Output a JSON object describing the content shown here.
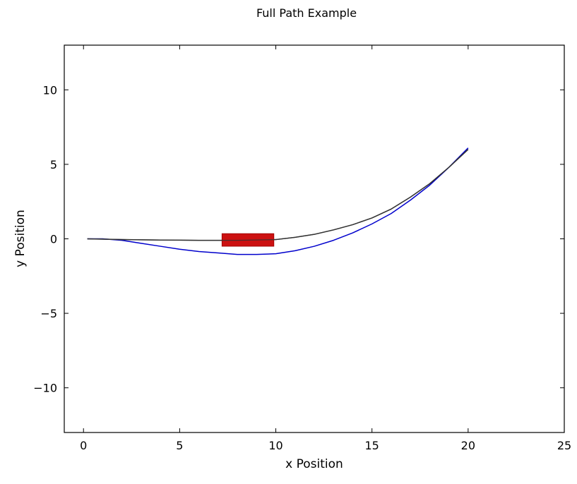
{
  "chart_data": {
    "type": "line",
    "title": "Full Path Example",
    "xlabel": "x Position",
    "ylabel": "y Position",
    "xlim": [
      -1,
      25
    ],
    "ylim": [
      -13,
      13
    ],
    "xticks": [
      0,
      5,
      10,
      15,
      20,
      25
    ],
    "xtick_labels": [
      "0",
      "5",
      "10",
      "15",
      "20",
      "25"
    ],
    "yticks": [
      -10,
      -5,
      0,
      5,
      10
    ],
    "ytick_labels": [
      "−10",
      "−5",
      "0",
      "5",
      "10"
    ],
    "grid": false,
    "series": [
      {
        "color": "#0000cc",
        "x": [
          0.2,
          1,
          2,
          3,
          4,
          5,
          6,
          7,
          8,
          9,
          10,
          11,
          12,
          13,
          14,
          15,
          16,
          17,
          18,
          19,
          20
        ],
        "y": [
          0.0,
          0.0,
          -0.1,
          -0.3,
          -0.5,
          -0.7,
          -0.85,
          -0.95,
          -1.05,
          -1.05,
          -1.0,
          -0.8,
          -0.5,
          -0.1,
          0.4,
          1.0,
          1.7,
          2.6,
          3.6,
          4.8,
          6.1
        ]
      },
      {
        "color": "#333333",
        "x": [
          0.2,
          2,
          4,
          6,
          8,
          10,
          11,
          12,
          13,
          14,
          15,
          16,
          17,
          18,
          19,
          20
        ],
        "y": [
          0.0,
          -0.05,
          -0.08,
          -0.1,
          -0.1,
          -0.05,
          0.1,
          0.3,
          0.6,
          0.95,
          1.4,
          2.0,
          2.8,
          3.7,
          4.8,
          6.0
        ]
      }
    ],
    "shapes": [
      {
        "type": "rectangle",
        "color": "#cc1111",
        "x_range": [
          7.2,
          9.9
        ],
        "y_range": [
          -0.5,
          0.35
        ]
      }
    ]
  }
}
